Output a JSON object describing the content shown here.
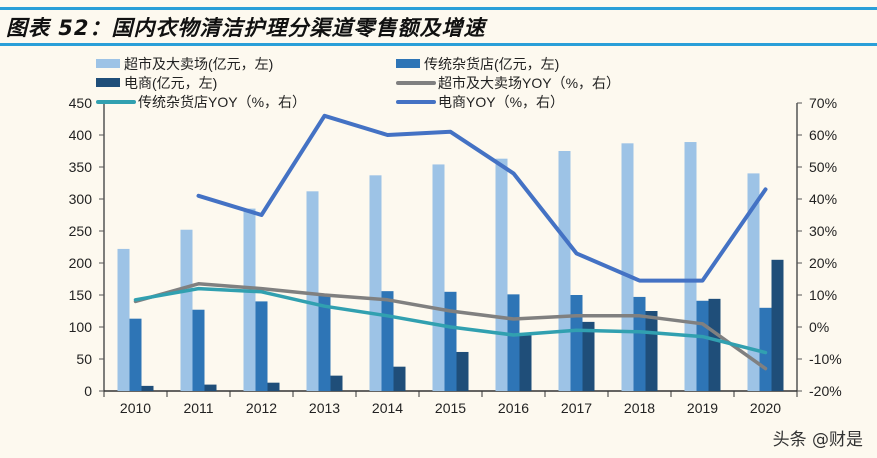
{
  "title": "图表 52：国内衣物清洁护理分渠道零售额及增速",
  "watermark": "头条 @财是",
  "chart_data": {
    "type": "bar+line",
    "categories": [
      "2010",
      "2011",
      "2012",
      "2013",
      "2014",
      "2015",
      "2016",
      "2017",
      "2018",
      "2019",
      "2020"
    ],
    "bar_series": [
      {
        "name": "超市及大卖场(亿元，左)",
        "color": "#9dc3e6",
        "values": [
          222,
          252,
          285,
          312,
          337,
          354,
          363,
          375,
          387,
          389,
          340
        ]
      },
      {
        "name": "传统杂货店(亿元，左)",
        "color": "#2e75b6",
        "values": [
          113,
          127,
          140,
          150,
          156,
          155,
          151,
          150,
          147,
          141,
          130
        ]
      },
      {
        "name": "电商(亿元，左)",
        "color": "#1f4e79",
        "values": [
          8,
          10,
          13,
          24,
          38,
          61,
          87,
          108,
          125,
          144,
          205
        ]
      }
    ],
    "line_series": [
      {
        "name": "超市及大卖场YOY（%，右）",
        "color": "#808080",
        "values": [
          8,
          13.5,
          12,
          10,
          8.5,
          5,
          2.5,
          3.5,
          3.5,
          1,
          -13
        ]
      },
      {
        "name": "传统杂货店YOY（%，右）",
        "color": "#31a0b0",
        "values": [
          8.5,
          12,
          11,
          6.5,
          3.5,
          0,
          -2.5,
          -1,
          -1.5,
          -3,
          -8
        ]
      },
      {
        "name": "电商YOY（%，右）",
        "color": "#4472c4",
        "values": [
          null,
          41,
          35,
          66,
          60,
          61,
          48,
          23,
          14.5,
          14.5,
          43
        ]
      }
    ],
    "y_left": {
      "ylim": [
        0,
        450
      ],
      "ticks": [
        "0",
        "50",
        "100",
        "150",
        "200",
        "250",
        "300",
        "350",
        "400",
        "450"
      ]
    },
    "y_right": {
      "ylim": [
        -20,
        70
      ],
      "ticks": [
        "-20%",
        "-10%",
        "0%",
        "10%",
        "20%",
        "30%",
        "40%",
        "50%",
        "60%",
        "70%"
      ]
    },
    "legend_placement": "top",
    "grid": false
  }
}
